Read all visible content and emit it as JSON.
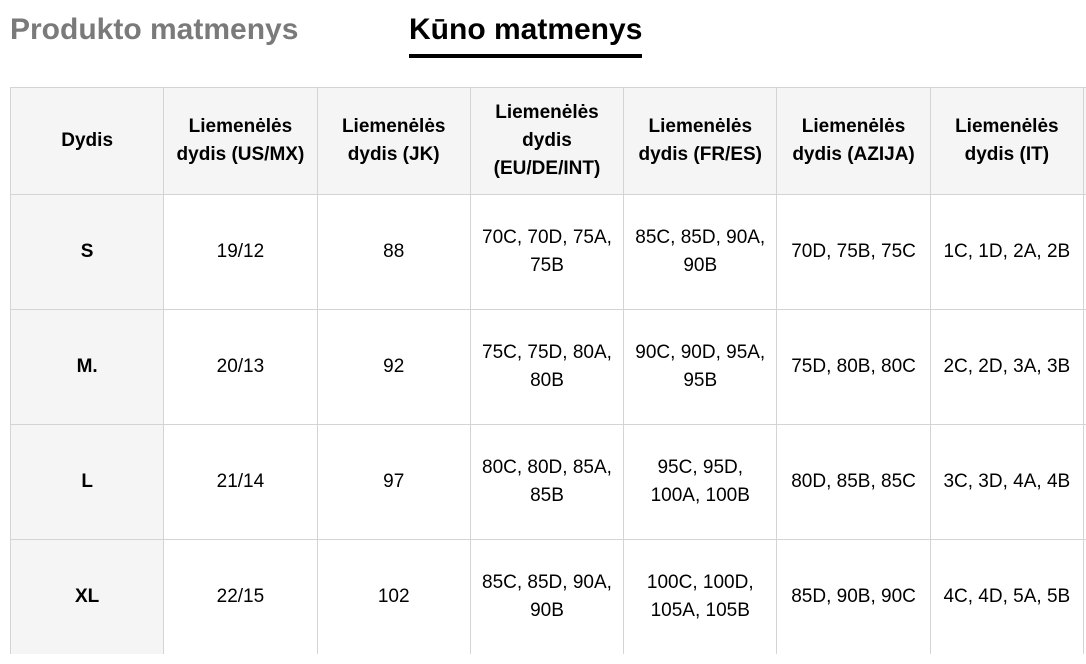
{
  "tabs": {
    "product": "Produkto matmenys",
    "body": "Kūno matmenys"
  },
  "table": {
    "headers": [
      "Dydis",
      "Liemenėlės dydis (US/MX)",
      "Liemenėlės dydis (JK)",
      "Liemenėlės dydis (EU/DE/INT)",
      "Liemenėlės dydis (FR/ES)",
      "Liemenėlės dydis (AZIJA)",
      "Liemenėlės dydis (IT)"
    ],
    "rows": [
      [
        "S",
        "19/12",
        "88",
        "70C, 70D, 75A, 75B",
        "85C, 85D, 90A, 90B",
        "70D, 75B, 75C",
        "1C, 1D, 2A, 2B"
      ],
      [
        "M.",
        "20/13",
        "92",
        "75C, 75D, 80A, 80B",
        "90C, 90D, 95A, 95B",
        "75D, 80B, 80C",
        "2C, 2D, 3A, 3B"
      ],
      [
        "L",
        "21/14",
        "97",
        "80C, 80D, 85A, 85B",
        "95C, 95D, 100A, 100B",
        "80D, 85B, 85C",
        "3C, 3D, 4A, 4B"
      ],
      [
        "XL",
        "22/15",
        "102",
        "85C, 85D, 90A, 90B",
        "100C, 100D, 105A, 105B",
        "85D, 90B, 90C",
        "4C, 4D, 5A, 5B"
      ]
    ]
  }
}
